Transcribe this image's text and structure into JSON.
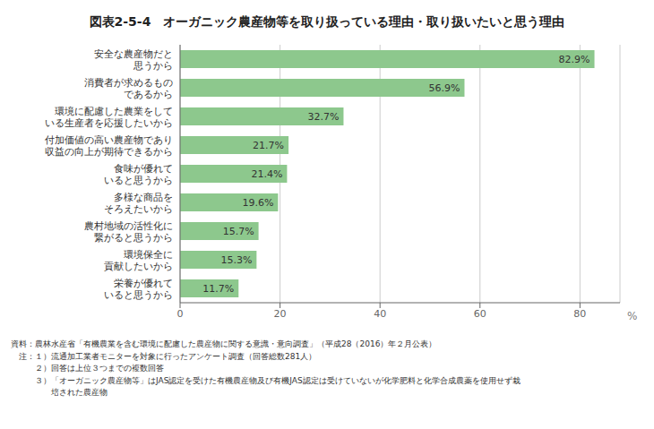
{
  "chart_data": {
    "type": "bar",
    "orientation": "horizontal",
    "title": "図表2-5-4　オーガニック農産物等を取り扱っている理由・取り扱いたいと思う理由",
    "categories": [
      "栄養が優れて\nいると思うから",
      "環境保全に\n貢献したいから",
      "農村地域の活性化に\n繋がると思うから",
      "多様な商品を\nそろえたいから",
      "食味が優れて\nいると思うから",
      "付加価値の高い農産物であり\n収益の向上が期待できるから",
      "環境に配慮した農業をして\nいる生産者を応援したいから",
      "消費者が求めるもの\nであるから",
      "安全な農産物だと\n思うから"
    ],
    "values": [
      11.7,
      15.3,
      15.7,
      19.6,
      21.4,
      21.7,
      32.7,
      56.9,
      82.9
    ],
    "value_labels": [
      "11.7%",
      "15.3%",
      "15.7%",
      "19.6%",
      "21.4%",
      "21.7%",
      "32.7%",
      "56.9%",
      "82.9%"
    ],
    "data_labels": true,
    "color": "#8dc88d",
    "xlabel": "%",
    "xlim": [
      0,
      88
    ],
    "xticks": [
      0,
      20,
      40,
      60,
      80
    ],
    "grid": true,
    "footnote": "資料：農林水産省「有機農業を含む環境に配慮した農産物に関する意識・意向調査」（平成28（2016）年２月公表）\n　注：１）流通加工業者モニターを対象に行ったアンケート調査（回答総数281人）\n　　　２）回答は上位３つまでの複数回答\n　　　３）「オーガニック農産物等」はJAS認定を受けた有機農産物及び有機JAS認定は受けていないが化学肥料と化学合成農薬を使用せず栽\n　　　　　培された農産物"
  }
}
